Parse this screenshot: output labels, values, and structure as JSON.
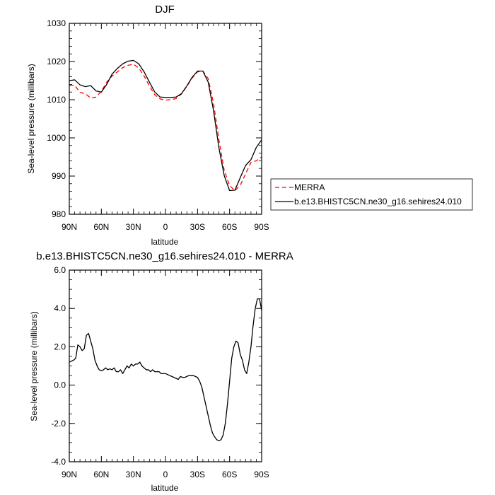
{
  "chart_data": [
    {
      "type": "line",
      "title": "DJF",
      "xlabel": "latitude",
      "ylabel": "Sea-level pressure (millibars)",
      "xlim": [
        90,
        -90
      ],
      "ylim": [
        980,
        1030
      ],
      "x_ticks": [
        90,
        60,
        30,
        0,
        -30,
        -60,
        -90
      ],
      "x_tick_labels": [
        "90N",
        "60N",
        "30N",
        "0",
        "30S",
        "60S",
        "90S"
      ],
      "y_ticks": [
        980,
        990,
        1000,
        1010,
        1020,
        1030
      ],
      "y_tick_labels": [
        "980",
        "990",
        "1000",
        "1010",
        "1020",
        "1030"
      ],
      "legend_position": "right",
      "series": [
        {
          "name": "MERRA",
          "color": "#ff0000",
          "dash": "dashed",
          "points": [
            [
              90,
              1013.8
            ],
            [
              85,
              1013.8
            ],
            [
              80,
              1011.9
            ],
            [
              75,
              1011.6
            ],
            [
              70,
              1010.4
            ],
            [
              65,
              1010.7
            ],
            [
              60,
              1012.2
            ],
            [
              55,
              1014.6
            ],
            [
              50,
              1016.2
            ],
            [
              45,
              1017.3
            ],
            [
              40,
              1018.4
            ],
            [
              35,
              1019.0
            ],
            [
              30,
              1019.3
            ],
            [
              25,
              1018.3
            ],
            [
              20,
              1016.2
            ],
            [
              15,
              1013.6
            ],
            [
              10,
              1011.3
            ],
            [
              5,
              1010.2
            ],
            [
              0,
              1009.9
            ],
            [
              -5,
              1010.0
            ],
            [
              -10,
              1010.3
            ],
            [
              -15,
              1011.5
            ],
            [
              -20,
              1013.5
            ],
            [
              -25,
              1015.7
            ],
            [
              -30,
              1017.3
            ],
            [
              -35,
              1017.5
            ],
            [
              -40,
              1015.5
            ],
            [
              -45,
              1009.0
            ],
            [
              -50,
              999.5
            ],
            [
              -55,
              991.5
            ],
            [
              -60,
              987.5
            ],
            [
              -65,
              986.2
            ],
            [
              -70,
              987.6
            ],
            [
              -75,
              990.6
            ],
            [
              -80,
              993.6
            ],
            [
              -85,
              994.0
            ],
            [
              -90,
              995.0
            ]
          ]
        },
        {
          "name": "b.e13.BHISTC5CN.ne30_g16.sehires24.010",
          "color": "#000000",
          "dash": "solid",
          "points": [
            [
              90,
              1015.0
            ],
            [
              85,
              1015.2
            ],
            [
              80,
              1013.9
            ],
            [
              75,
              1013.4
            ],
            [
              70,
              1013.7
            ],
            [
              65,
              1012.3
            ],
            [
              60,
              1012.0
            ],
            [
              55,
              1014.0
            ],
            [
              50,
              1016.7
            ],
            [
              45,
              1018.2
            ],
            [
              40,
              1019.4
            ],
            [
              35,
              1020.1
            ],
            [
              30,
              1020.3
            ],
            [
              25,
              1019.4
            ],
            [
              20,
              1017.3
            ],
            [
              15,
              1014.6
            ],
            [
              10,
              1012.0
            ],
            [
              5,
              1010.7
            ],
            [
              0,
              1010.6
            ],
            [
              -5,
              1010.6
            ],
            [
              -10,
              1010.7
            ],
            [
              -15,
              1011.6
            ],
            [
              -20,
              1013.6
            ],
            [
              -25,
              1015.9
            ],
            [
              -30,
              1017.5
            ],
            [
              -35,
              1017.5
            ],
            [
              -40,
              1014.6
            ],
            [
              -45,
              1007.1
            ],
            [
              -50,
              997.4
            ],
            [
              -55,
              990.1
            ],
            [
              -60,
              986.2
            ],
            [
              -65,
              986.3
            ],
            [
              -70,
              989.6
            ],
            [
              -75,
              992.8
            ],
            [
              -80,
              994.3
            ],
            [
              -85,
              997.5
            ],
            [
              -90,
              999.5
            ]
          ]
        }
      ]
    },
    {
      "type": "line",
      "title": "b.e13.BHISTC5CN.ne30_g16.sehires24.010 - MERRA",
      "xlabel": "latitude",
      "ylabel": "Sea-level pressure (millibars)",
      "xlim": [
        90,
        -90
      ],
      "ylim": [
        -4.0,
        6.0
      ],
      "x_ticks": [
        90,
        60,
        30,
        0,
        -30,
        -60,
        -90
      ],
      "x_tick_labels": [
        "90N",
        "60N",
        "30N",
        "0",
        "30S",
        "60S",
        "90S"
      ],
      "y_ticks": [
        -4,
        -2,
        0,
        2,
        4,
        6
      ],
      "y_tick_labels": [
        "-4.0",
        "-2.0",
        "0.0",
        "2.0",
        "4.0",
        "6.0"
      ],
      "series": [
        {
          "color": "#000000",
          "dash": "solid",
          "points": [
            [
              90,
              1.2
            ],
            [
              86,
              1.3
            ],
            [
              84,
              1.4
            ],
            [
              82,
              2.1
            ],
            [
              80,
              2.0
            ],
            [
              78,
              1.8
            ],
            [
              76,
              1.9
            ],
            [
              74,
              2.6
            ],
            [
              72,
              2.7
            ],
            [
              70,
              2.3
            ],
            [
              68,
              1.9
            ],
            [
              66,
              1.3
            ],
            [
              64,
              1.0
            ],
            [
              62,
              0.8
            ],
            [
              60,
              0.75
            ],
            [
              58,
              0.8
            ],
            [
              56,
              0.9
            ],
            [
              54,
              0.8
            ],
            [
              52,
              0.85
            ],
            [
              50,
              0.8
            ],
            [
              48,
              0.9
            ],
            [
              46,
              0.7
            ],
            [
              44,
              0.7
            ],
            [
              42,
              0.8
            ],
            [
              40,
              0.6
            ],
            [
              38,
              0.8
            ],
            [
              36,
              1.0
            ],
            [
              34,
              0.9
            ],
            [
              32,
              1.1
            ],
            [
              30,
              1.0
            ],
            [
              28,
              1.1
            ],
            [
              26,
              1.1
            ],
            [
              24,
              1.2
            ],
            [
              22,
              1.0
            ],
            [
              20,
              0.9
            ],
            [
              18,
              0.8
            ],
            [
              16,
              0.8
            ],
            [
              14,
              0.7
            ],
            [
              12,
              0.8
            ],
            [
              10,
              0.7
            ],
            [
              8,
              0.7
            ],
            [
              6,
              0.7
            ],
            [
              4,
              0.6
            ],
            [
              2,
              0.6
            ],
            [
              0,
              0.6
            ],
            [
              -2,
              0.55
            ],
            [
              -4,
              0.5
            ],
            [
              -6,
              0.45
            ],
            [
              -8,
              0.4
            ],
            [
              -10,
              0.35
            ],
            [
              -12,
              0.3
            ],
            [
              -14,
              0.45
            ],
            [
              -16,
              0.4
            ],
            [
              -18,
              0.4
            ],
            [
              -20,
              0.45
            ],
            [
              -22,
              0.5
            ],
            [
              -24,
              0.5
            ],
            [
              -26,
              0.5
            ],
            [
              -28,
              0.45
            ],
            [
              -30,
              0.4
            ],
            [
              -32,
              0.2
            ],
            [
              -34,
              -0.1
            ],
            [
              -36,
              -0.6
            ],
            [
              -38,
              -1.1
            ],
            [
              -40,
              -1.6
            ],
            [
              -42,
              -2.1
            ],
            [
              -44,
              -2.5
            ],
            [
              -46,
              -2.7
            ],
            [
              -48,
              -2.85
            ],
            [
              -50,
              -2.9
            ],
            [
              -52,
              -2.85
            ],
            [
              -54,
              -2.6
            ],
            [
              -56,
              -2.0
            ],
            [
              -58,
              -1.0
            ],
            [
              -60,
              0.2
            ],
            [
              -62,
              1.4
            ],
            [
              -64,
              2.0
            ],
            [
              -66,
              2.3
            ],
            [
              -68,
              2.2
            ],
            [
              -70,
              1.6
            ],
            [
              -72,
              1.3
            ],
            [
              -74,
              0.8
            ],
            [
              -76,
              0.6
            ],
            [
              -78,
              1.2
            ],
            [
              -80,
              2.0
            ],
            [
              -82,
              3.1
            ],
            [
              -84,
              4.0
            ],
            [
              -86,
              4.5
            ],
            [
              -88,
              4.5
            ],
            [
              -90,
              3.9
            ]
          ]
        }
      ]
    }
  ]
}
